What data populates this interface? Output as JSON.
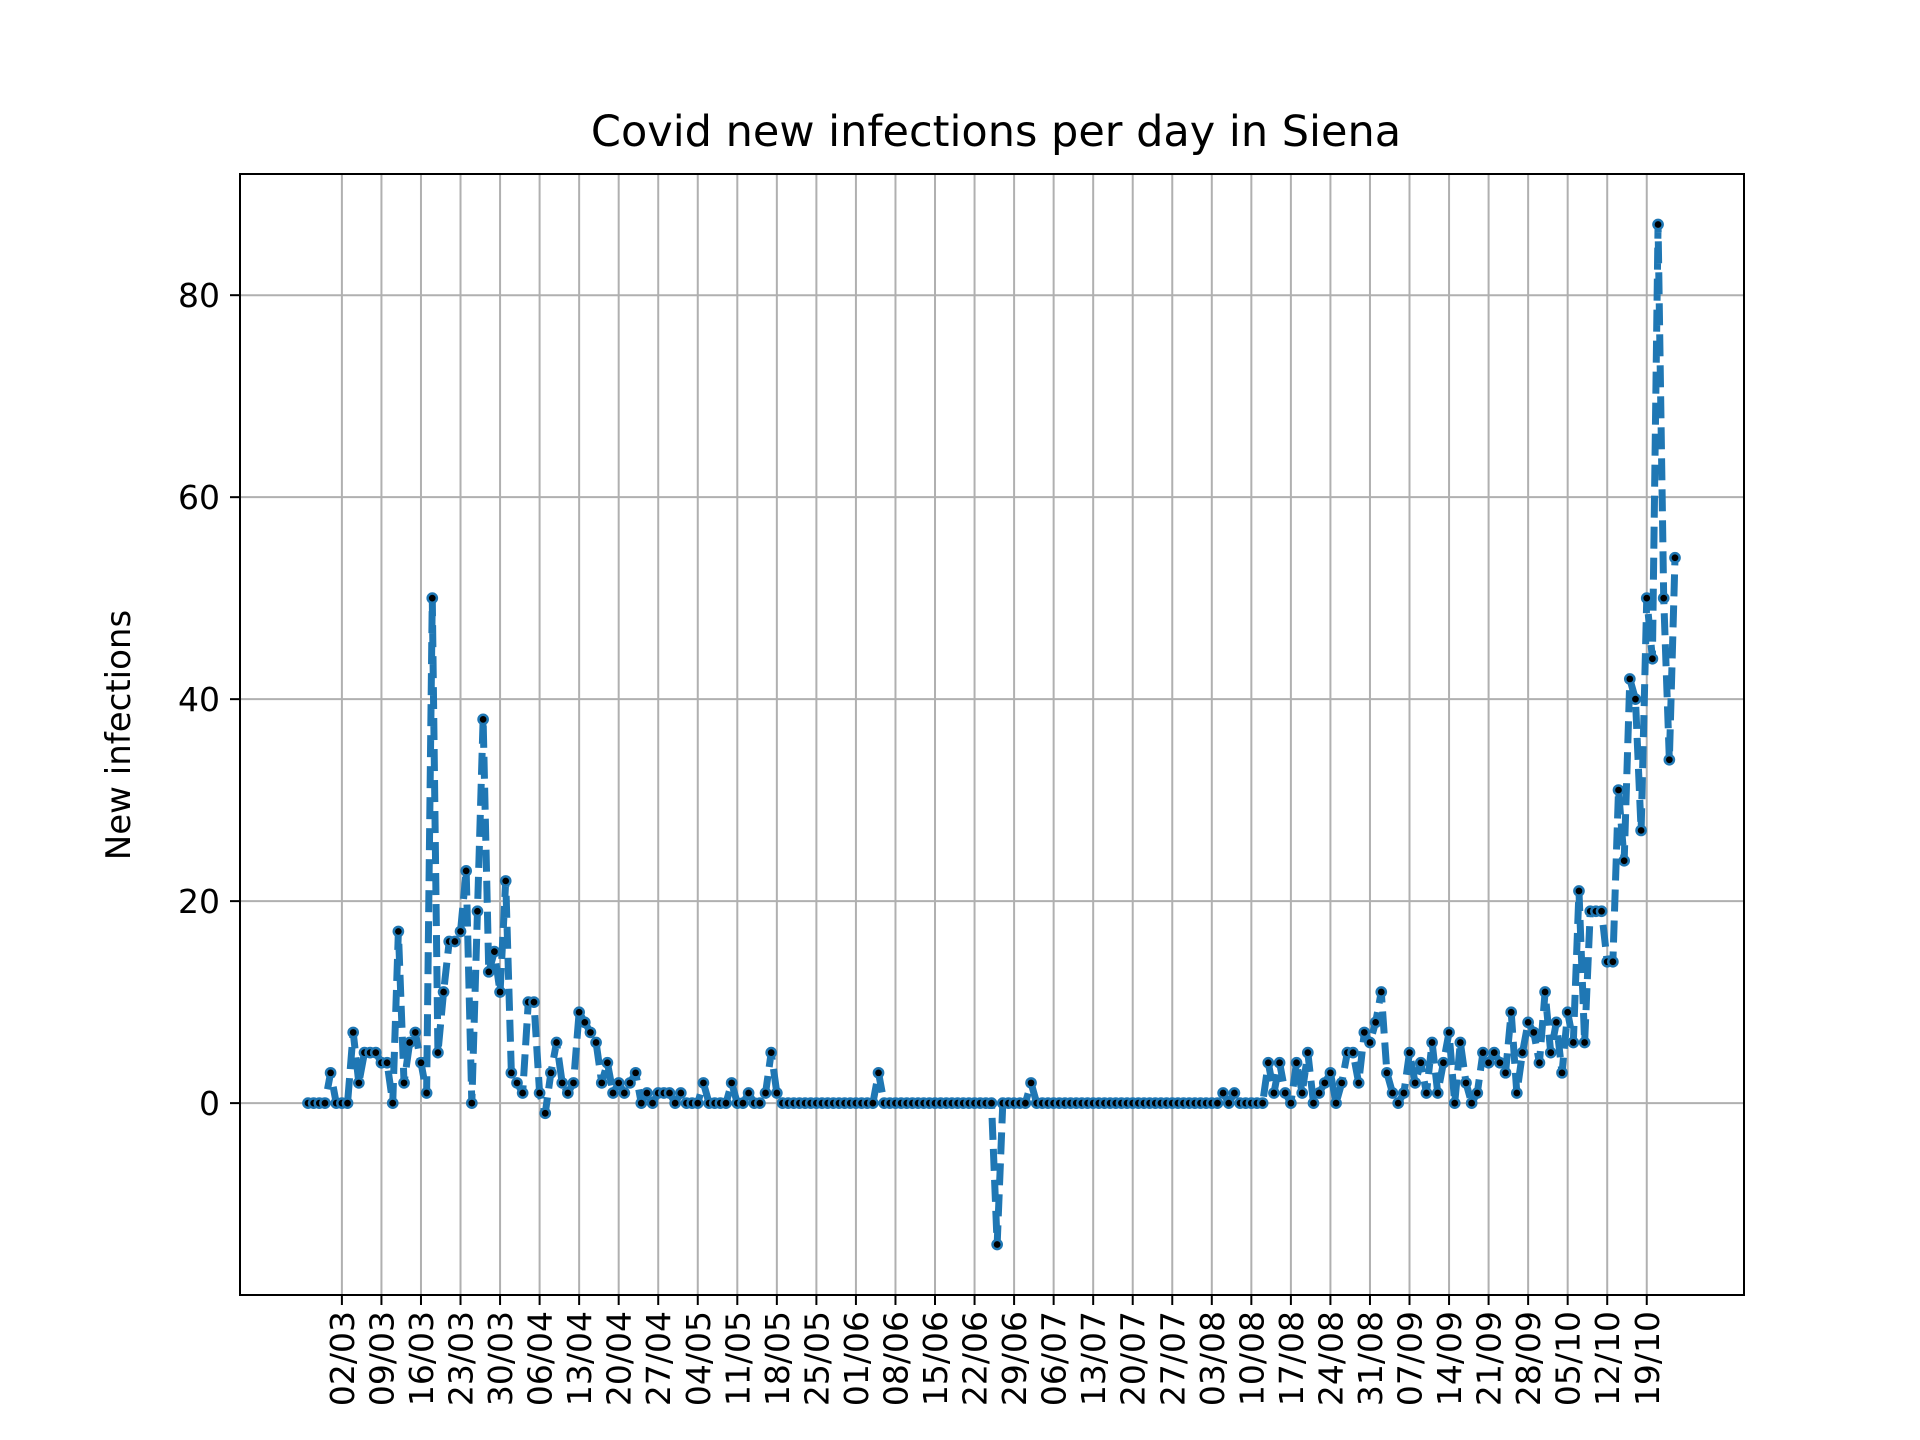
{
  "chart_data": {
    "type": "line",
    "title": "Covid new infections per day in Siena",
    "xlabel": "",
    "ylabel": "New infections",
    "x_start": "2020-02-25",
    "x_ticks": [
      "02/03",
      "09/03",
      "16/03",
      "23/03",
      "30/03",
      "06/04",
      "13/04",
      "20/04",
      "27/04",
      "04/05",
      "11/05",
      "18/05",
      "25/05",
      "01/06",
      "08/06",
      "15/06",
      "22/06",
      "29/06",
      "06/07",
      "13/07",
      "20/07",
      "27/07",
      "03/08",
      "10/08",
      "17/08",
      "24/08",
      "31/08",
      "07/09",
      "14/09",
      "21/09",
      "28/09",
      "05/10",
      "12/10",
      "19/10"
    ],
    "y_ticks": [
      0,
      20,
      40,
      60,
      80
    ],
    "ylim": [
      -19,
      92
    ],
    "grid": true,
    "line_style": "dashed",
    "line_color": "#1f77b4",
    "marker_color": "#000000",
    "series": [
      {
        "values": [
          0,
          0,
          0,
          0,
          3,
          0,
          0,
          0,
          7,
          2,
          5,
          5,
          5,
          4,
          4,
          0,
          17,
          2,
          6,
          7,
          4,
          1,
          50,
          5,
          11,
          16,
          16,
          17,
          23,
          0,
          19,
          38,
          13,
          15,
          11,
          22,
          3,
          2,
          1,
          10,
          10,
          1,
          -1,
          3,
          6,
          2,
          1,
          2,
          9,
          8,
          7,
          6,
          2,
          4,
          1,
          2,
          1,
          2,
          3,
          0,
          1,
          0,
          1,
          1,
          1,
          0,
          1,
          0,
          0,
          0,
          2,
          0,
          0,
          0,
          0,
          2,
          0,
          0,
          1,
          0,
          0,
          1,
          5,
          1,
          0,
          0,
          0,
          0,
          0,
          0,
          0,
          0,
          0,
          0,
          0,
          0,
          0,
          0,
          0,
          0,
          0,
          3,
          0,
          0,
          0,
          0,
          0,
          0,
          0,
          0,
          0,
          0,
          0,
          0,
          0,
          0,
          0,
          0,
          0,
          0,
          0,
          0,
          -14,
          0,
          0,
          0,
          0,
          0,
          2,
          0,
          0,
          0,
          0,
          0,
          0,
          0,
          0,
          0,
          0,
          0,
          0,
          0,
          0,
          0,
          0,
          0,
          0,
          0,
          0,
          0,
          0,
          0,
          0,
          0,
          0,
          0,
          0,
          0,
          0,
          0,
          0,
          0,
          1,
          0,
          1,
          0,
          0,
          0,
          0,
          0,
          4,
          1,
          4,
          1,
          0,
          4,
          1,
          5,
          0,
          1,
          2,
          3,
          0,
          2,
          5,
          5,
          2,
          7,
          6,
          8,
          11,
          3,
          1,
          0,
          1,
          5,
          2,
          4,
          1,
          6,
          1,
          4,
          7,
          0,
          6,
          2,
          0,
          1,
          5,
          4,
          5,
          4,
          3,
          9,
          1,
          5,
          8,
          7,
          4,
          11,
          5,
          8,
          3,
          9,
          6,
          21,
          6,
          19,
          19,
          19,
          14,
          14,
          31,
          24,
          42,
          40,
          27,
          50,
          44,
          87,
          50,
          34,
          54
        ]
      }
    ]
  }
}
